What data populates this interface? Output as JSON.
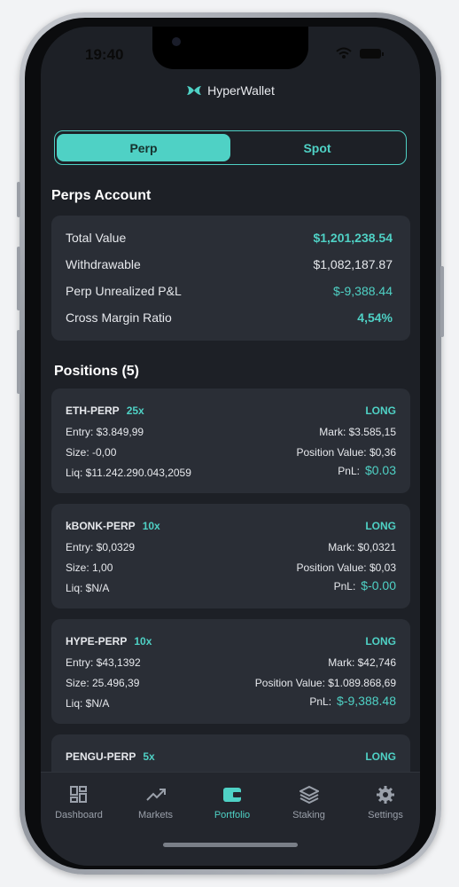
{
  "status_bar": {
    "time": "19:40"
  },
  "header": {
    "title": "HyperWallet"
  },
  "tabs": [
    "Perp",
    "Spot"
  ],
  "account": {
    "title": "Perps Account",
    "rows": [
      {
        "label": "Total Value",
        "value": "$1,201,238.54"
      },
      {
        "label": "Withdrawable",
        "value": "$1,082,187.87"
      },
      {
        "label": "Perp Unrealized P&L",
        "value": "$-9,388.44"
      },
      {
        "label": "Cross Margin Ratio",
        "value": "4,54%"
      }
    ]
  },
  "positions": {
    "title": "Positions (5)",
    "items": [
      {
        "symbol": "ETH-PERP",
        "leverage": "25x",
        "side": "LONG",
        "entry": "Entry: $3.849,99",
        "mark": "Mark: $3.585,15",
        "size": "Size: -0,00",
        "position_value": "Position Value: $0,36",
        "liq": "Liq: $11.242.290.043,2059",
        "pnl_label": "PnL:",
        "pnl": "$0.03"
      },
      {
        "symbol": "kBONK-PERP",
        "leverage": "10x",
        "side": "LONG",
        "entry": "Entry: $0,0329",
        "mark": "Mark: $0,0321",
        "size": "Size: 1,00",
        "position_value": "Position Value: $0,03",
        "liq": "Liq: $N/A",
        "pnl_label": "PnL:",
        "pnl": "$-0.00"
      },
      {
        "symbol": "HYPE-PERP",
        "leverage": "10x",
        "side": "LONG",
        "entry": "Entry: $43,1392",
        "mark": "Mark: $42,746",
        "size": "Size: 25.496,39",
        "position_value": "Position Value: $1.089.868,69",
        "liq": "Liq: $N/A",
        "pnl_label": "PnL:",
        "pnl": "$-9,388.48"
      },
      {
        "symbol": "PENGU-PERP",
        "leverage": "5x",
        "side": "LONG"
      }
    ]
  },
  "nav": [
    "Dashboard",
    "Markets",
    "Portfolio",
    "Staking",
    "Settings"
  ]
}
